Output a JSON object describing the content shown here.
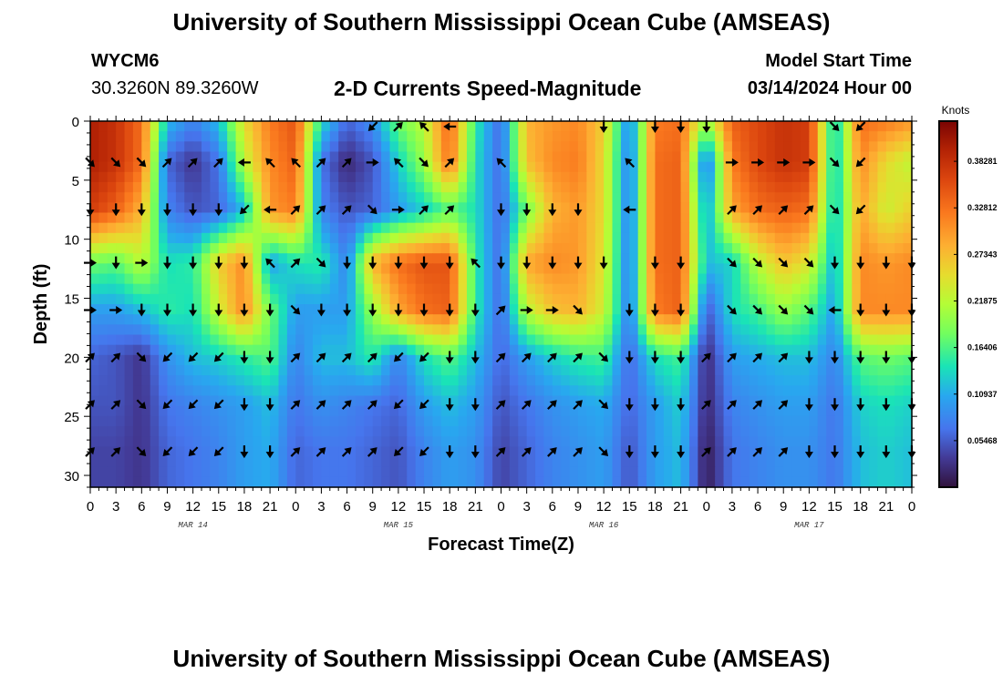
{
  "header": {
    "title": "University of Southern Mississippi Ocean Cube (AMSEAS)",
    "station_id": "WYCM6",
    "coordinates": "30.3260N  89.3260W",
    "chart_title": "2-D Currents Speed-Magnitude",
    "model_start_label": "Model Start Time",
    "model_start_value": "03/14/2024 Hour 00"
  },
  "footer": {
    "title": "University of Southern Mississippi Ocean Cube (AMSEAS)"
  },
  "chart_data": {
    "type": "heatmap",
    "title": "2-D Currents Speed-Magnitude",
    "xlabel": "Forecast Time(Z)",
    "ylabel": "Depth (ft)",
    "xlim": [
      0,
      96
    ],
    "ylim": [
      31,
      0
    ],
    "x_ticks": [
      0,
      3,
      6,
      9,
      12,
      15,
      18,
      21,
      24,
      27,
      30,
      33,
      36,
      39,
      42,
      45,
      48,
      51,
      54,
      57,
      60,
      63,
      66,
      69,
      72,
      75,
      78,
      81,
      84,
      87,
      90,
      93,
      96
    ],
    "x_tick_labels": [
      "0",
      "3",
      "6",
      "9",
      "12",
      "15",
      "18",
      "21",
      "0",
      "3",
      "6",
      "9",
      "12",
      "15",
      "18",
      "21",
      "0",
      "3",
      "6",
      "9",
      "12",
      "15",
      "18",
      "21",
      "0",
      "3",
      "6",
      "9",
      "12",
      "15",
      "18",
      "21",
      "0"
    ],
    "y_ticks": [
      0,
      5,
      10,
      15,
      20,
      25,
      30
    ],
    "y_tick_labels": [
      "0",
      "5",
      "10",
      "15",
      "20",
      "25",
      "30"
    ],
    "date_labels": [
      {
        "label": "MAR 14",
        "hour": 12
      },
      {
        "label": "MAR 15",
        "hour": 36
      },
      {
        "label": "MAR 16",
        "hour": 60
      },
      {
        "label": "MAR 17",
        "hour": 84
      }
    ],
    "colorbar": {
      "unit": "Knots",
      "range": [
        0.0,
        0.43
      ],
      "ticks": [
        0.38281,
        0.32812,
        0.27343,
        0.21875,
        0.16406,
        0.10937,
        0.05468
      ],
      "tick_labels": [
        "0.38281",
        "0.32812",
        "0.27343",
        "0.21875",
        "0.16406",
        "0.10937",
        "0.05468"
      ]
    },
    "speed_grid": {
      "depths_ft": [
        0,
        3.5,
        7.5,
        12,
        16,
        20,
        24,
        28,
        31
      ],
      "hours": [
        0,
        3,
        6,
        9,
        12,
        15,
        18,
        21,
        24,
        27,
        30,
        33,
        36,
        39,
        42,
        45,
        48,
        51,
        54,
        57,
        60,
        63,
        66,
        69,
        72,
        75,
        78,
        81,
        84,
        87,
        90,
        93,
        96
      ],
      "values": [
        [
          0.4,
          0.38,
          0.33,
          0.12,
          0.08,
          0.12,
          0.25,
          0.32,
          0.35,
          0.14,
          0.06,
          0.09,
          0.18,
          0.22,
          0.34,
          0.15,
          0.06,
          0.28,
          0.3,
          0.31,
          0.26,
          0.08,
          0.32,
          0.33,
          0.2,
          0.34,
          0.36,
          0.38,
          0.37,
          0.12,
          0.33,
          0.32,
          0.3
        ],
        [
          0.4,
          0.38,
          0.33,
          0.06,
          0.03,
          0.07,
          0.22,
          0.31,
          0.34,
          0.07,
          0.02,
          0.05,
          0.13,
          0.2,
          0.33,
          0.14,
          0.06,
          0.27,
          0.31,
          0.32,
          0.25,
          0.07,
          0.33,
          0.34,
          0.06,
          0.32,
          0.36,
          0.38,
          0.37,
          0.12,
          0.31,
          0.25,
          0.22
        ],
        [
          0.37,
          0.34,
          0.28,
          0.08,
          0.05,
          0.06,
          0.12,
          0.3,
          0.32,
          0.08,
          0.05,
          0.06,
          0.1,
          0.13,
          0.17,
          0.14,
          0.06,
          0.18,
          0.28,
          0.3,
          0.25,
          0.07,
          0.33,
          0.34,
          0.1,
          0.29,
          0.33,
          0.34,
          0.33,
          0.12,
          0.29,
          0.23,
          0.26
        ],
        [
          0.18,
          0.17,
          0.22,
          0.14,
          0.15,
          0.26,
          0.31,
          0.1,
          0.14,
          0.15,
          0.08,
          0.28,
          0.33,
          0.35,
          0.35,
          0.15,
          0.06,
          0.29,
          0.31,
          0.3,
          0.24,
          0.07,
          0.33,
          0.34,
          0.12,
          0.13,
          0.22,
          0.27,
          0.24,
          0.11,
          0.31,
          0.3,
          0.31
        ],
        [
          0.1,
          0.1,
          0.12,
          0.15,
          0.14,
          0.23,
          0.31,
          0.18,
          0.1,
          0.1,
          0.1,
          0.2,
          0.29,
          0.33,
          0.34,
          0.15,
          0.06,
          0.22,
          0.27,
          0.28,
          0.23,
          0.07,
          0.32,
          0.34,
          0.05,
          0.14,
          0.16,
          0.2,
          0.17,
          0.1,
          0.31,
          0.31,
          0.31
        ],
        [
          0.06,
          0.05,
          0.03,
          0.09,
          0.12,
          0.13,
          0.15,
          0.17,
          0.08,
          0.12,
          0.12,
          0.15,
          0.08,
          0.14,
          0.17,
          0.12,
          0.06,
          0.1,
          0.13,
          0.15,
          0.16,
          0.06,
          0.14,
          0.16,
          0.02,
          0.1,
          0.11,
          0.12,
          0.12,
          0.08,
          0.17,
          0.18,
          0.17
        ],
        [
          0.05,
          0.05,
          0.03,
          0.07,
          0.08,
          0.09,
          0.1,
          0.12,
          0.07,
          0.09,
          0.08,
          0.07,
          0.06,
          0.1,
          0.12,
          0.1,
          0.05,
          0.07,
          0.09,
          0.1,
          0.11,
          0.06,
          0.1,
          0.13,
          0.02,
          0.08,
          0.09,
          0.1,
          0.1,
          0.07,
          0.13,
          0.14,
          0.13
        ],
        [
          0.04,
          0.04,
          0.03,
          0.06,
          0.07,
          0.08,
          0.1,
          0.11,
          0.06,
          0.07,
          0.07,
          0.06,
          0.05,
          0.08,
          0.1,
          0.09,
          0.04,
          0.06,
          0.08,
          0.09,
          0.1,
          0.05,
          0.1,
          0.12,
          0.01,
          0.07,
          0.08,
          0.09,
          0.09,
          0.07,
          0.12,
          0.13,
          0.12
        ],
        [
          0.04,
          0.04,
          0.03,
          0.06,
          0.07,
          0.08,
          0.1,
          0.11,
          0.06,
          0.07,
          0.07,
          0.06,
          0.05,
          0.08,
          0.1,
          0.09,
          0.04,
          0.06,
          0.08,
          0.09,
          0.1,
          0.05,
          0.1,
          0.12,
          0.01,
          0.07,
          0.08,
          0.09,
          0.09,
          0.07,
          0.12,
          0.13,
          0.12
        ]
      ]
    },
    "vectors": {
      "depths_ft": [
        0,
        3.5,
        7.5,
        12,
        16,
        20,
        24,
        28
      ],
      "hours": [
        0,
        3,
        6,
        9,
        12,
        15,
        18,
        21,
        24,
        27,
        30,
        33,
        36,
        39,
        42,
        45,
        48,
        51,
        54,
        57,
        60,
        63,
        66,
        69,
        72,
        75,
        78,
        81,
        84,
        87,
        90,
        93,
        96
      ],
      "direction_deg": [
        [
          null,
          null,
          null,
          null,
          null,
          null,
          null,
          null,
          null,
          null,
          null,
          225,
          45,
          315,
          270,
          null,
          null,
          null,
          null,
          null,
          180,
          null,
          180,
          180,
          180,
          null,
          null,
          null,
          null,
          135,
          225,
          null,
          null
        ],
        [
          135,
          135,
          135,
          45,
          45,
          45,
          270,
          315,
          315,
          45,
          45,
          90,
          315,
          135,
          45,
          null,
          315,
          null,
          null,
          null,
          null,
          315,
          null,
          null,
          null,
          90,
          90,
          90,
          90,
          135,
          225,
          null,
          null
        ],
        [
          180,
          180,
          180,
          180,
          180,
          180,
          225,
          270,
          45,
          45,
          45,
          135,
          90,
          45,
          45,
          null,
          180,
          180,
          180,
          180,
          null,
          270,
          null,
          null,
          null,
          45,
          45,
          45,
          45,
          135,
          225,
          null,
          null
        ],
        [
          90,
          180,
          90,
          180,
          180,
          180,
          180,
          315,
          45,
          135,
          180,
          180,
          180,
          180,
          180,
          315,
          180,
          180,
          180,
          180,
          180,
          null,
          180,
          180,
          null,
          135,
          135,
          135,
          135,
          180,
          180,
          180,
          180
        ],
        [
          90,
          90,
          180,
          180,
          180,
          180,
          180,
          180,
          135,
          180,
          180,
          180,
          180,
          180,
          180,
          180,
          45,
          90,
          90,
          135,
          null,
          180,
          180,
          180,
          null,
          135,
          135,
          135,
          135,
          270,
          180,
          180,
          180
        ],
        [
          45,
          45,
          135,
          225,
          225,
          225,
          180,
          180,
          45,
          45,
          45,
          45,
          225,
          225,
          180,
          180,
          45,
          45,
          45,
          45,
          135,
          180,
          180,
          180,
          45,
          45,
          45,
          45,
          180,
          180,
          180,
          180,
          180
        ],
        [
          45,
          45,
          135,
          225,
          225,
          225,
          180,
          180,
          45,
          45,
          45,
          45,
          225,
          225,
          180,
          180,
          45,
          45,
          45,
          45,
          135,
          180,
          180,
          180,
          45,
          45,
          45,
          45,
          180,
          180,
          180,
          180,
          180
        ],
        [
          45,
          45,
          135,
          225,
          225,
          225,
          180,
          180,
          45,
          45,
          45,
          45,
          225,
          225,
          180,
          180,
          45,
          45,
          45,
          45,
          135,
          180,
          180,
          180,
          45,
          45,
          45,
          45,
          180,
          180,
          180,
          180,
          180
        ]
      ]
    }
  }
}
